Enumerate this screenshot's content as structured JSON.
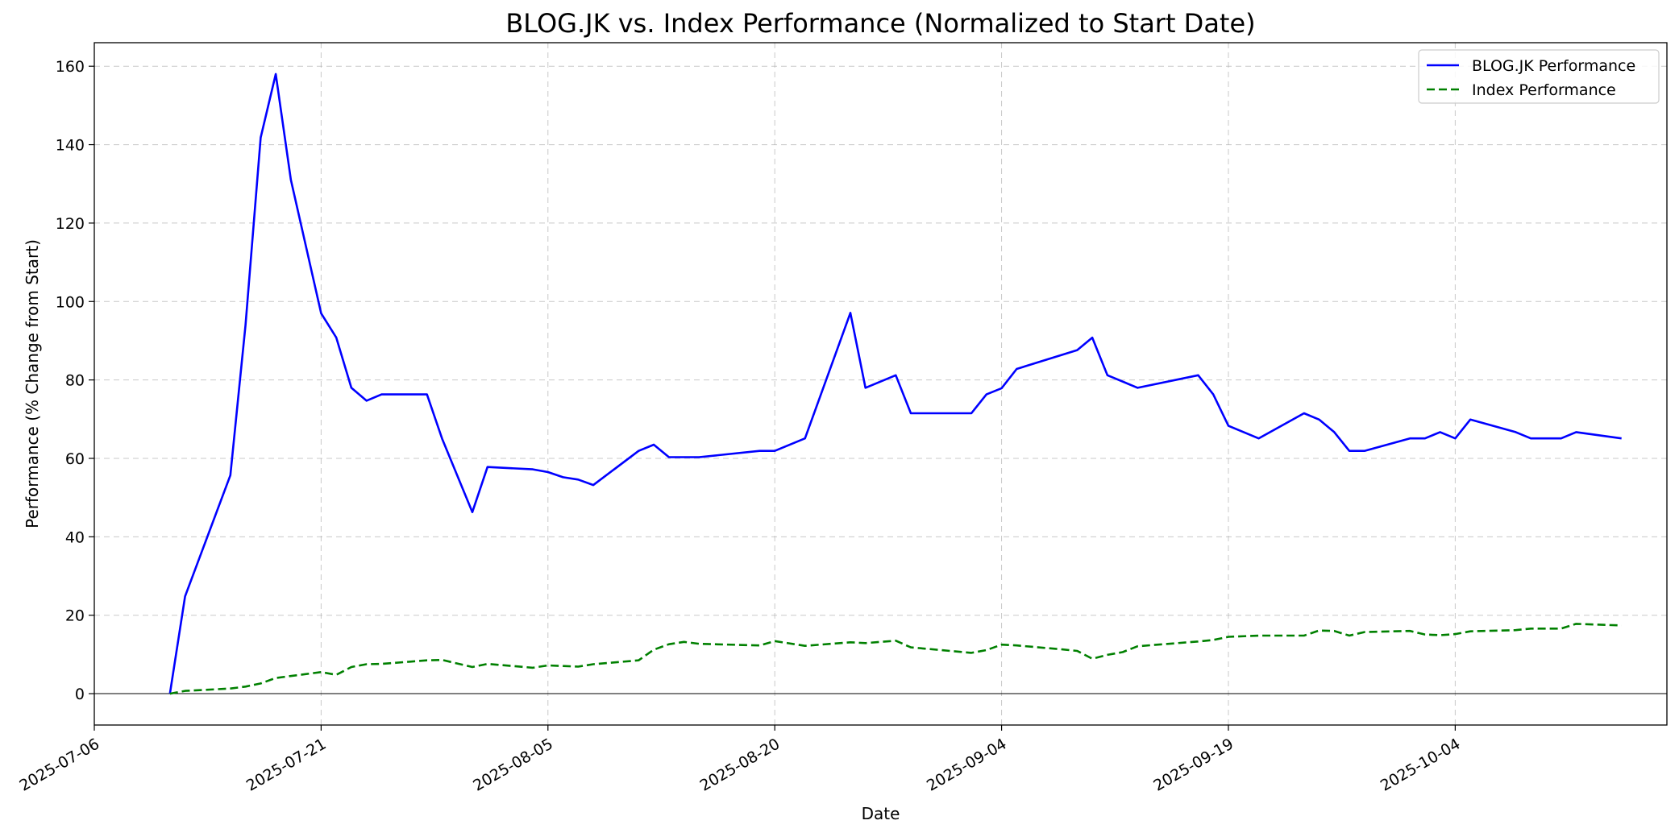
{
  "chart_data": {
    "type": "line",
    "title": "BLOG.JK vs. Index Performance (Normalized to Start Date)",
    "xlabel": "Date",
    "ylabel": "Performance (% Change from Start)",
    "xlim": [
      "2025-07-06",
      "2025-10-18"
    ],
    "ylim": [
      -8,
      166
    ],
    "x_ticks": [
      "2025-07-06",
      "2025-07-21",
      "2025-08-05",
      "2025-08-20",
      "2025-09-04",
      "2025-09-19",
      "2025-10-04"
    ],
    "y_ticks": [
      0,
      20,
      40,
      60,
      80,
      100,
      120,
      140,
      160
    ],
    "grid": true,
    "zero_line": true,
    "legend_position": "top-right",
    "series": [
      {
        "name": "BLOG.JK Performance",
        "color": "#0000ff",
        "style": "solid",
        "points": [
          [
            "2025-07-11",
            0
          ],
          [
            "2025-07-12",
            24.8
          ],
          [
            "2025-07-15",
            55.7
          ],
          [
            "2025-07-16",
            94
          ],
          [
            "2025-07-17",
            141.8
          ],
          [
            "2025-07-18",
            158
          ],
          [
            "2025-07-19",
            131
          ],
          [
            "2025-07-21",
            97
          ],
          [
            "2025-07-22",
            90.8
          ],
          [
            "2025-07-23",
            78
          ],
          [
            "2025-07-24",
            74.7
          ],
          [
            "2025-07-25",
            76.3
          ],
          [
            "2025-07-28",
            76.3
          ],
          [
            "2025-07-29",
            65
          ],
          [
            "2025-07-31",
            46.3
          ],
          [
            "2025-08-01",
            57.8
          ],
          [
            "2025-08-04",
            57.2
          ],
          [
            "2025-08-05",
            56.5
          ],
          [
            "2025-08-06",
            55.2
          ],
          [
            "2025-08-07",
            54.6
          ],
          [
            "2025-08-08",
            53.2
          ],
          [
            "2025-08-11",
            61.9
          ],
          [
            "2025-08-12",
            63.5
          ],
          [
            "2025-08-13",
            60.3
          ],
          [
            "2025-08-15",
            60.3
          ],
          [
            "2025-08-19",
            61.9
          ],
          [
            "2025-08-20",
            61.9
          ],
          [
            "2025-08-22",
            65.1
          ],
          [
            "2025-08-25",
            97.1
          ],
          [
            "2025-08-26",
            78
          ],
          [
            "2025-08-28",
            81.2
          ],
          [
            "2025-08-29",
            71.5
          ],
          [
            "2025-09-02",
            71.5
          ],
          [
            "2025-09-03",
            76.3
          ],
          [
            "2025-09-04",
            77.9
          ],
          [
            "2025-09-05",
            82.8
          ],
          [
            "2025-09-09",
            87.6
          ],
          [
            "2025-09-10",
            90.8
          ],
          [
            "2025-09-11",
            81.2
          ],
          [
            "2025-09-13",
            78
          ],
          [
            "2025-09-17",
            81.2
          ],
          [
            "2025-09-18",
            76.3
          ],
          [
            "2025-09-19",
            68.3
          ],
          [
            "2025-09-21",
            65.1
          ],
          [
            "2025-09-24",
            71.5
          ],
          [
            "2025-09-25",
            69.9
          ],
          [
            "2025-09-26",
            66.7
          ],
          [
            "2025-09-27",
            61.9
          ],
          [
            "2025-09-28",
            61.9
          ],
          [
            "2025-10-01",
            65.1
          ],
          [
            "2025-10-02",
            65.1
          ],
          [
            "2025-10-03",
            66.7
          ],
          [
            "2025-10-04",
            65.1
          ],
          [
            "2025-10-05",
            69.9
          ],
          [
            "2025-10-08",
            66.7
          ],
          [
            "2025-10-09",
            65.1
          ],
          [
            "2025-10-11",
            65.1
          ],
          [
            "2025-10-12",
            66.7
          ],
          [
            "2025-10-15",
            65.1
          ]
        ]
      },
      {
        "name": "Index Performance",
        "color": "#008000",
        "style": "dashed",
        "points": [
          [
            "2025-07-11",
            0
          ],
          [
            "2025-07-12",
            0.7
          ],
          [
            "2025-07-15",
            1.3
          ],
          [
            "2025-07-16",
            1.8
          ],
          [
            "2025-07-17",
            2.6
          ],
          [
            "2025-07-18",
            4
          ],
          [
            "2025-07-21",
            5.5
          ],
          [
            "2025-07-22",
            4.8
          ],
          [
            "2025-07-23",
            6.8
          ],
          [
            "2025-07-24",
            7.5
          ],
          [
            "2025-07-25",
            7.6
          ],
          [
            "2025-07-28",
            8.5
          ],
          [
            "2025-07-29",
            8.6
          ],
          [
            "2025-07-31",
            6.8
          ],
          [
            "2025-08-01",
            7.6
          ],
          [
            "2025-08-04",
            6.6
          ],
          [
            "2025-08-05",
            7.2
          ],
          [
            "2025-08-07",
            6.9
          ],
          [
            "2025-08-08",
            7.5
          ],
          [
            "2025-08-11",
            8.5
          ],
          [
            "2025-08-12",
            11.2
          ],
          [
            "2025-08-13",
            12.6
          ],
          [
            "2025-08-14",
            13.2
          ],
          [
            "2025-08-15",
            12.7
          ],
          [
            "2025-08-19",
            12.3
          ],
          [
            "2025-08-20",
            13.4
          ],
          [
            "2025-08-22",
            12.2
          ],
          [
            "2025-08-25",
            13.1
          ],
          [
            "2025-08-26",
            12.9
          ],
          [
            "2025-08-28",
            13.5
          ],
          [
            "2025-08-29",
            11.8
          ],
          [
            "2025-09-02",
            10.4
          ],
          [
            "2025-09-03",
            11.1
          ],
          [
            "2025-09-04",
            12.5
          ],
          [
            "2025-09-05",
            12.3
          ],
          [
            "2025-09-08",
            11.3
          ],
          [
            "2025-09-09",
            10.9
          ],
          [
            "2025-09-10",
            8.9
          ],
          [
            "2025-09-11",
            9.9
          ],
          [
            "2025-09-12",
            10.6
          ],
          [
            "2025-09-13",
            12.1
          ],
          [
            "2025-09-17",
            13.3
          ],
          [
            "2025-09-18",
            13.7
          ],
          [
            "2025-09-19",
            14.5
          ],
          [
            "2025-09-21",
            14.8
          ],
          [
            "2025-09-24",
            14.8
          ],
          [
            "2025-09-25",
            16.1
          ],
          [
            "2025-09-26",
            16
          ],
          [
            "2025-09-27",
            14.8
          ],
          [
            "2025-09-28",
            15.7
          ],
          [
            "2025-10-01",
            16
          ],
          [
            "2025-10-02",
            15.1
          ],
          [
            "2025-10-03",
            14.9
          ],
          [
            "2025-10-04",
            15.2
          ],
          [
            "2025-10-05",
            15.9
          ],
          [
            "2025-10-08",
            16.2
          ],
          [
            "2025-10-09",
            16.6
          ],
          [
            "2025-10-11",
            16.6
          ],
          [
            "2025-10-12",
            17.8
          ],
          [
            "2025-10-15",
            17.4
          ]
        ]
      }
    ]
  }
}
